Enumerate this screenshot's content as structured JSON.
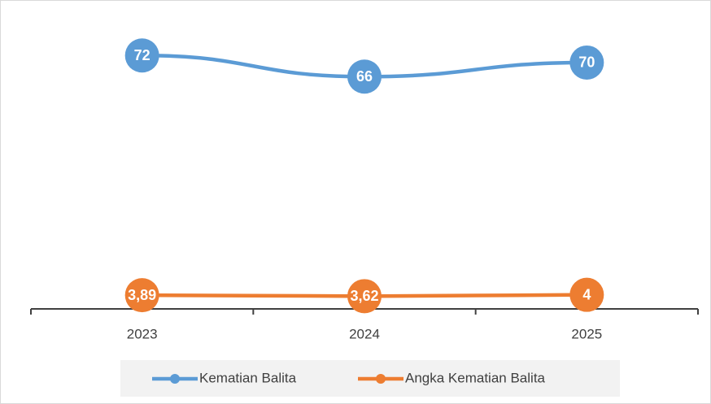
{
  "chart_data": {
    "type": "line",
    "categories": [
      "2023",
      "2024",
      "2025"
    ],
    "series": [
      {
        "name": "Kematian Balita",
        "color": "#5b9bd5",
        "values": [
          72,
          66,
          70
        ]
      },
      {
        "name": "Angka Kematian Balita",
        "color": "#ed7d31",
        "values": [
          3.89,
          3.62,
          4
        ],
        "value_labels": [
          "3,89",
          "3,62",
          "4"
        ]
      }
    ],
    "ylim": [
      0,
      85
    ],
    "grid": false,
    "legend": "bottom"
  }
}
